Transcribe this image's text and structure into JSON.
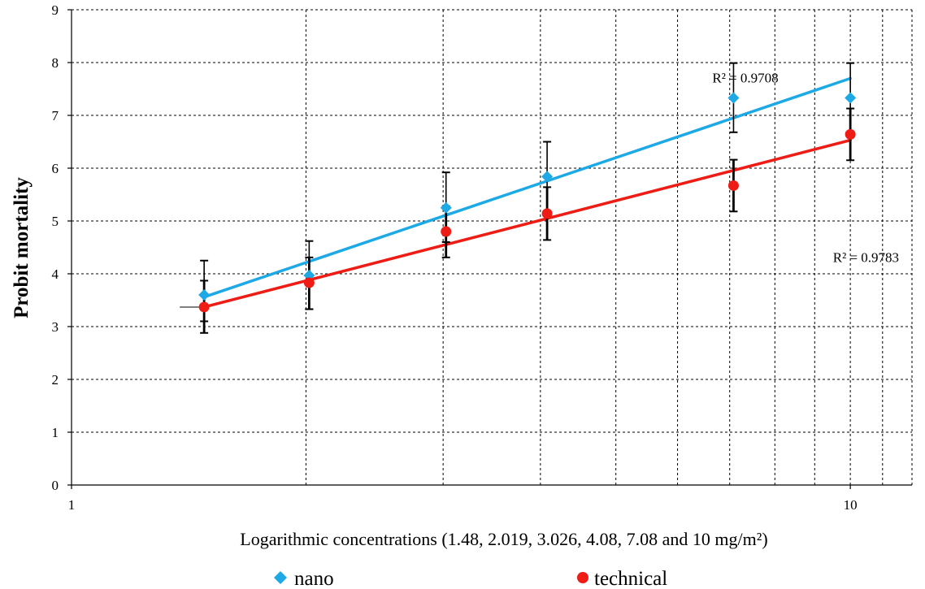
{
  "chart_data": {
    "type": "scatter",
    "title": "",
    "xlabel": "Logarithmic concentrations (1.48, 2.019, 3.026, 4.08, 7.08 and 10 mg/m²)",
    "ylabel": "Probit mortality",
    "x_scale": "log",
    "xlim": [
      1,
      12
    ],
    "ylim": [
      0,
      9
    ],
    "x_ticks": [
      "1",
      "10"
    ],
    "y_ticks": [
      "0",
      "1",
      "2",
      "3",
      "4",
      "5",
      "6",
      "7",
      "8",
      "9"
    ],
    "grid": true,
    "legend_position": "bottom",
    "series": [
      {
        "name": "nano",
        "color": "#1ca9e6",
        "marker": "diamond",
        "x": [
          1.48,
          2.019,
          3.026,
          4.08,
          7.08,
          10
        ],
        "y": [
          3.6,
          3.97,
          5.25,
          5.84,
          7.33,
          7.33
        ],
        "err_low": [
          3.1,
          3.33,
          4.6,
          5.18,
          6.68,
          6.68
        ],
        "err_high": [
          4.25,
          4.62,
          5.92,
          6.5,
          7.99,
          7.99
        ],
        "trendline": {
          "x0": 1.48,
          "y0": 3.56,
          "x1": 10,
          "y1": 7.7
        },
        "r2_label": "R² = 0.9708",
        "r2_label_at": {
          "x": 6.65,
          "y": 7.62
        }
      },
      {
        "name": "technical",
        "color": "#ee1c14",
        "marker": "circle",
        "x": [
          1.48,
          2.019,
          3.026,
          4.08,
          7.08,
          10
        ],
        "y": [
          3.37,
          3.83,
          4.8,
          5.14,
          5.67,
          6.64
        ],
        "err_low": [
          2.88,
          3.33,
          4.31,
          4.64,
          5.18,
          6.15
        ],
        "err_high": [
          3.87,
          4.31,
          5.28,
          5.64,
          6.16,
          7.13
        ],
        "trendline": {
          "x0": 1.48,
          "y0": 3.37,
          "x1": 10,
          "y1": 6.53
        },
        "r2_label": "R² = 0.9783",
        "r2_label_at": {
          "x": 9.5,
          "y": 4.22
        }
      }
    ]
  }
}
